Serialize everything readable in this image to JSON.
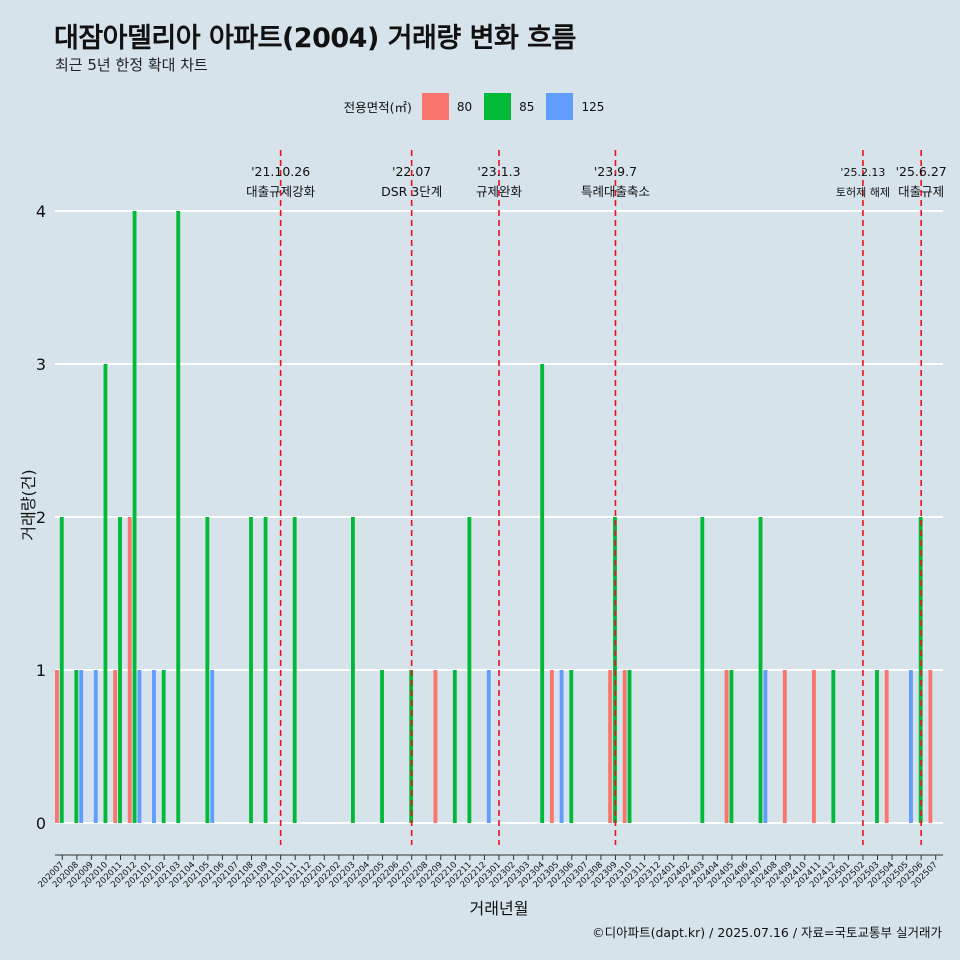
{
  "title": "대잠아델리아 아파트(2004) 거래량 변화 흐름",
  "subtitle": "최근 5년 한정 확대 차트",
  "caption": "©디아파트(dapt.kr) / 2025.07.16 / 자료=국토교통부 실거래가",
  "legend": {
    "title": "전용면적(㎡)",
    "items": [
      {
        "label": "80",
        "color": "#f8766d"
      },
      {
        "label": "85",
        "color": "#00ba38"
      },
      {
        "label": "125",
        "color": "#619cff"
      }
    ]
  },
  "chart_data": {
    "type": "bar",
    "xlabel": "거래년월",
    "ylabel": "거래량(건)",
    "ylim": [
      0,
      4
    ],
    "yticks": [
      0,
      1,
      2,
      3,
      4
    ],
    "grid": true,
    "legend_position": "top",
    "categories": [
      "202007",
      "202008",
      "202009",
      "202010",
      "202011",
      "202012",
      "202101",
      "202102",
      "202103",
      "202104",
      "202105",
      "202106",
      "202107",
      "202108",
      "202109",
      "202110",
      "202111",
      "202112",
      "202201",
      "202202",
      "202203",
      "202204",
      "202205",
      "202206",
      "202207",
      "202208",
      "202209",
      "202210",
      "202211",
      "202212",
      "202301",
      "202302",
      "202303",
      "202304",
      "202305",
      "202306",
      "202307",
      "202308",
      "202309",
      "202310",
      "202311",
      "202312",
      "202401",
      "202402",
      "202403",
      "202404",
      "202405",
      "202406",
      "202407",
      "202408",
      "202409",
      "202410",
      "202411",
      "202412",
      "202501",
      "202502",
      "202503",
      "202504",
      "202505",
      "202506",
      "202507"
    ],
    "series": [
      {
        "name": "80",
        "color": "#f8766d",
        "values": [
          1,
          0,
          0,
          0,
          1,
          2,
          0,
          0,
          0,
          0,
          0,
          0,
          0,
          0,
          0,
          0,
          0,
          0,
          0,
          0,
          0,
          0,
          0,
          0,
          0,
          0,
          1,
          0,
          0,
          0,
          0,
          0,
          0,
          0,
          1,
          0,
          0,
          0,
          1,
          1,
          0,
          0,
          0,
          0,
          0,
          0,
          1,
          0,
          0,
          0,
          1,
          0,
          1,
          0,
          0,
          0,
          0,
          1,
          0,
          0,
          1
        ]
      },
      {
        "name": "85",
        "color": "#00ba38",
        "values": [
          2,
          1,
          0,
          3,
          2,
          4,
          0,
          1,
          4,
          0,
          2,
          0,
          0,
          2,
          2,
          0,
          2,
          0,
          0,
          0,
          2,
          0,
          1,
          0,
          1,
          0,
          0,
          1,
          2,
          0,
          0,
          0,
          0,
          3,
          0,
          1,
          0,
          0,
          2,
          1,
          0,
          0,
          0,
          0,
          2,
          0,
          1,
          0,
          2,
          0,
          0,
          0,
          0,
          1,
          0,
          0,
          1,
          0,
          0,
          2,
          0
        ]
      },
      {
        "name": "125",
        "color": "#619cff",
        "values": [
          0,
          1,
          1,
          0,
          0,
          1,
          1,
          0,
          0,
          0,
          1,
          0,
          0,
          0,
          0,
          0,
          0,
          0,
          0,
          0,
          0,
          0,
          0,
          0,
          0,
          0,
          0,
          0,
          0,
          1,
          0,
          0,
          0,
          0,
          1,
          0,
          0,
          0,
          0,
          0,
          0,
          0,
          0,
          0,
          0,
          0,
          0,
          0,
          1,
          0,
          0,
          0,
          0,
          0,
          0,
          0,
          0,
          0,
          1,
          0,
          0
        ]
      }
    ],
    "annotations": [
      {
        "date": "'21.10.26",
        "label": "대출규제강화",
        "category": "202110"
      },
      {
        "date": "'22.07",
        "label": "DSR 3단계",
        "category": "202207"
      },
      {
        "date": "'23.1.3",
        "label": "규제완화",
        "category": "202301"
      },
      {
        "date": "'23.9.7",
        "label": "특례대출축소",
        "category": "202309"
      },
      {
        "date": "'25.2.13",
        "label": "토허제 해제",
        "category": "202502"
      },
      {
        "date": "'25.6.27",
        "label": "대출규제",
        "category": "202506"
      }
    ]
  }
}
